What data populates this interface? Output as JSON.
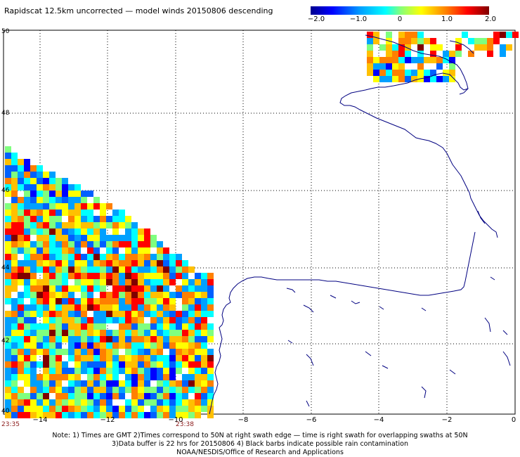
{
  "title": "Rapidscat 12.5km uncorrected — model winds 20150806 descending",
  "colorbar": {
    "labels": [
      {
        "text": "−2.0",
        "value": -2.0
      },
      {
        "text": "−1.0",
        "value": -1.0
      },
      {
        "text": "0",
        "value": 0
      },
      {
        "text": "1.0",
        "value": 1.0
      },
      {
        "text": "2.0",
        "value": 2.0
      }
    ],
    "range": [
      -2.0,
      2.0
    ]
  },
  "map": {
    "lat_labels": [
      "50",
      "48",
      "46",
      "44",
      "42",
      "40"
    ],
    "lon_labels": [
      "−14",
      "−12",
      "−10",
      "−8",
      "−6",
      "−4",
      "−2",
      "0"
    ],
    "lat_range": [
      40,
      50
    ],
    "lon_range": [
      -15,
      0
    ],
    "gridlines": "dotted",
    "coastline_color": "#000080"
  },
  "times": [
    "23:35",
    "23:38"
  ],
  "notes": [
    "Note: 1) Times are GMT 2)Times correspond to 50N at right swath edge — time is right swath for overlapping swaths at 50N",
    "3)Data buffer is 22 hrs for 20150806 4) Black barbs indicate possible rain contamination",
    "NOAA/NESDIS/Office of Research and Applications"
  ]
}
